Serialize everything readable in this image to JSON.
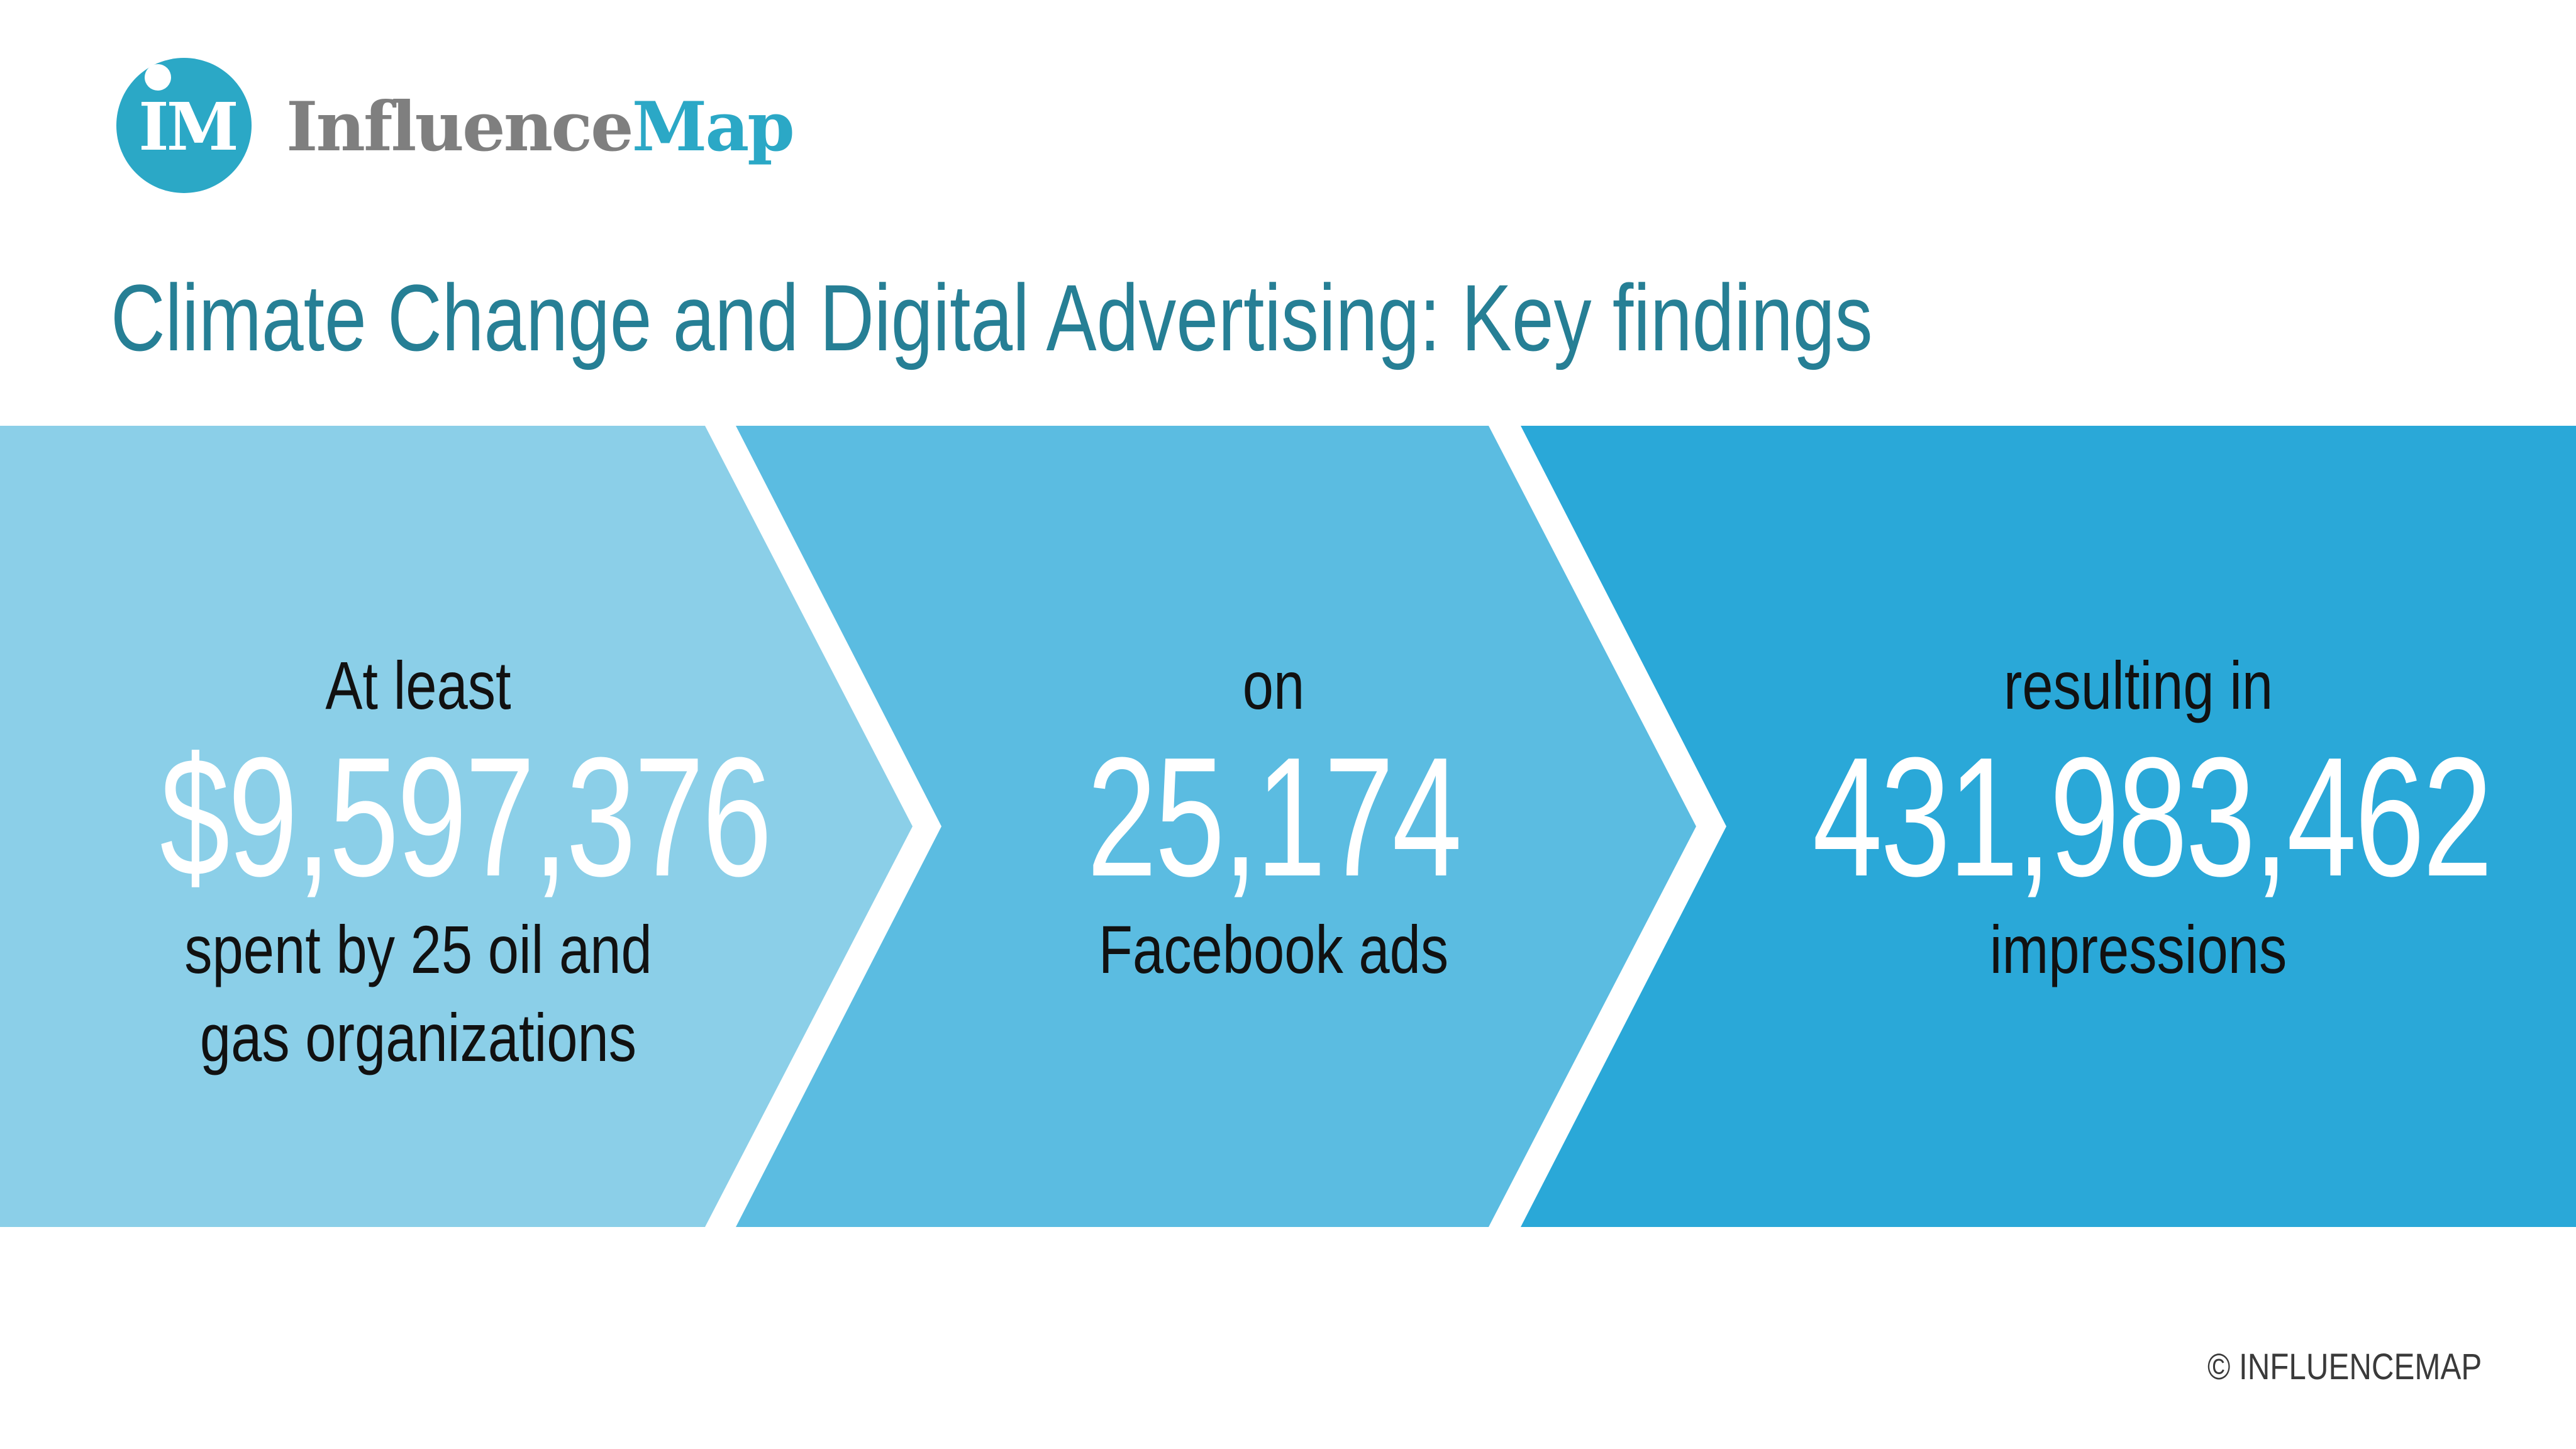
{
  "logo": {
    "letters": "IM",
    "word_part1": "Influence",
    "word_part2": "Map"
  },
  "title": "Climate Change and Digital Advertising: Key findings",
  "findings": [
    {
      "caption_top": "At least",
      "value": "$9,597,376",
      "caption_bottom": "spent by 25 oil and gas organizations",
      "color": "#8bcfe8"
    },
    {
      "caption_top": "on",
      "value": "25,174",
      "caption_bottom": "Facebook ads",
      "color": "#5bbce1"
    },
    {
      "caption_top": "resulting in",
      "value": "431,983,462",
      "caption_bottom": "impressions",
      "color": "#2aa8d8"
    }
  ],
  "copyright": "© INFLUENCEMAP",
  "colors": {
    "brand_teal": "#2ba8c6",
    "title_teal": "#267f95",
    "logo_grey": "#7f7f7f"
  }
}
